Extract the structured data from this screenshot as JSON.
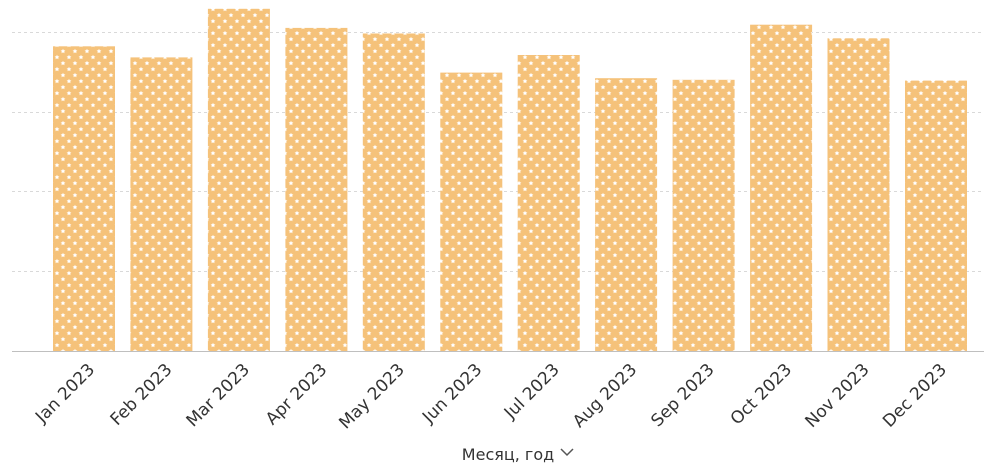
{
  "chart_data": {
    "type": "bar",
    "categories": [
      "Jan 2023",
      "Feb 2023",
      "Mar 2023",
      "Apr 2023",
      "May 2023",
      "Jun 2023",
      "Jul 2023",
      "Aug 2023",
      "Sep 2023",
      "Oct 2023",
      "Nov 2023",
      "Dec 2023"
    ],
    "values": [
      3.82,
      3.68,
      4.29,
      4.05,
      3.98,
      3.49,
      3.71,
      3.42,
      3.4,
      4.09,
      3.92,
      3.39
    ],
    "ylim": [
      0,
      4.4
    ],
    "y_gridlines": [
      1,
      2,
      3,
      4
    ],
    "y_tick_labels_visible": false,
    "grid": true,
    "xlabel": "Месяц, год",
    "xlabel_icon": "chevron-down-icon",
    "bar_color": "#f5c27a",
    "bar_pattern": "white-stars",
    "gridline_color": "#d9d9d9",
    "axis_color": "#bfbfbf"
  }
}
